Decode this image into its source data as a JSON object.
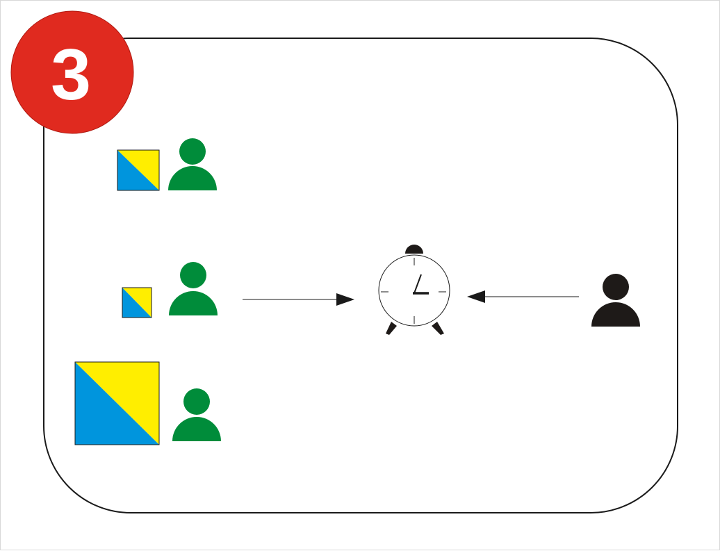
{
  "step_badge": {
    "number": "3",
    "color": "#e02a1f",
    "text_color": "#ffffff"
  },
  "colors": {
    "frame_stroke": "#1a1a1a",
    "square_blue": "#0095dd",
    "square_yellow": "#ffee00",
    "person_green": "#008c3a",
    "person_black": "#1e1a18",
    "clock_stroke": "#1a1a1a"
  },
  "left_group": {
    "pairs": [
      {
        "square_size": "medium",
        "person_color": "green"
      },
      {
        "square_size": "small",
        "person_color": "green"
      },
      {
        "square_size": "large",
        "person_color": "green"
      }
    ]
  },
  "center": {
    "icon": "alarm-clock-icon"
  },
  "right": {
    "icon": "person-icon",
    "person_color": "black"
  },
  "arrows": [
    {
      "from": "left-group",
      "to": "alarm-clock",
      "direction": "right"
    },
    {
      "from": "black-person",
      "to": "alarm-clock",
      "direction": "left"
    }
  ]
}
